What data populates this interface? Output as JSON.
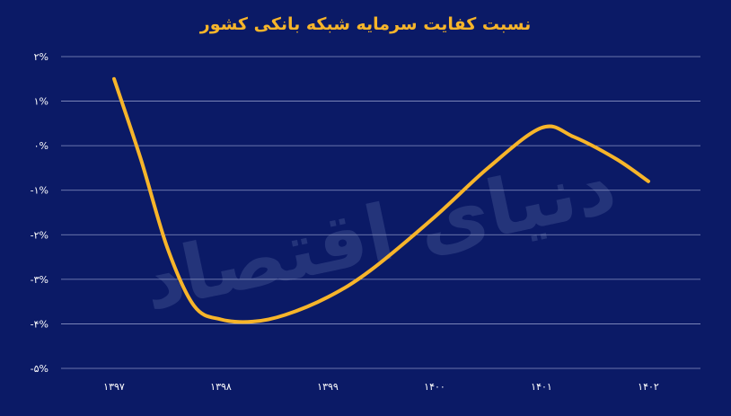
{
  "chart_data": {
    "type": "line",
    "title": "نسبت کفایت سرمایه شبکه بانکی کشور",
    "xlabel": "",
    "ylabel": "",
    "categories": [
      "۱۳۹۷",
      "۱۳۹۸",
      "۱۳۹۹",
      "۱۴۰۰",
      "۱۴۰۱",
      "۱۴۰۲"
    ],
    "y_tick_labels": [
      "۲%",
      "۱%",
      "۰%",
      "-۱%",
      "-۲%",
      "-۳%",
      "-۴%",
      "-۵%"
    ],
    "y_tick_values": [
      2,
      1,
      0,
      -1,
      -2,
      -3,
      -4,
      -5
    ],
    "ylim": [
      -5,
      2
    ],
    "grid": true,
    "smooth": true,
    "series": [
      {
        "name": "",
        "x": [
          0,
          0.25,
          0.5,
          0.75,
          1.0,
          1.3,
          1.6,
          2.0,
          2.4,
          3.0,
          3.5,
          4.0,
          4.3,
          4.7,
          5.0
        ],
        "values": [
          1.5,
          -0.3,
          -2.3,
          -3.6,
          -3.9,
          -3.95,
          -3.8,
          -3.4,
          -2.8,
          -1.6,
          -0.5,
          0.4,
          0.2,
          -0.3,
          -0.8
        ]
      }
    ],
    "line_color": "#f7b52a",
    "background_color": "#0b1a66",
    "grid_color": "#8a93c4",
    "tick_color": "#ffffff"
  },
  "watermark": "دنیای اقتصاد"
}
